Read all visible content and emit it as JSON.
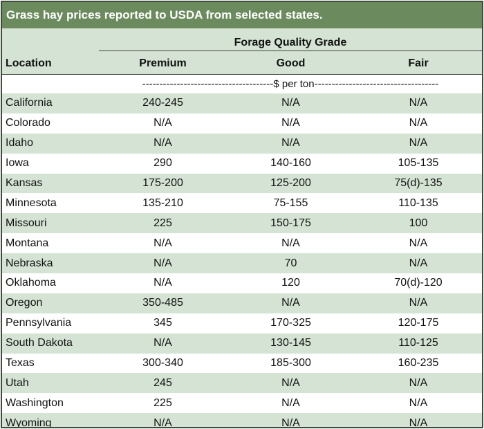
{
  "title": "Grass hay prices reported to USDA from selected states.",
  "header": {
    "group_label": "Forage Quality Grade",
    "location_label": "Location",
    "columns": [
      "Premium",
      "Good",
      "Fair"
    ],
    "units": "--------------------------------------$ per ton------------------------------------"
  },
  "rows": [
    {
      "location": "California",
      "premium": "240-245",
      "good": "N/A",
      "fair": "N/A"
    },
    {
      "location": "Colorado",
      "premium": "N/A",
      "good": "N/A",
      "fair": "N/A"
    },
    {
      "location": "Idaho",
      "premium": "N/A",
      "good": "N/A",
      "fair": "N/A"
    },
    {
      "location": "Iowa",
      "premium": "290",
      "good": "140-160",
      "fair": "105-135"
    },
    {
      "location": "Kansas",
      "premium": "175-200",
      "good": "125-200",
      "fair": "75(d)-135"
    },
    {
      "location": "Minnesota",
      "premium": "135-210",
      "good": "75-155",
      "fair": "110-135"
    },
    {
      "location": "Missouri",
      "premium": "225",
      "good": "150-175",
      "fair": "100"
    },
    {
      "location": "Montana",
      "premium": "N/A",
      "good": "N/A",
      "fair": "N/A"
    },
    {
      "location": "Nebraska",
      "premium": "N/A",
      "good": "70",
      "fair": "N/A"
    },
    {
      "location": "Oklahoma",
      "premium": "N/A",
      "good": "120",
      "fair": "70(d)-120"
    },
    {
      "location": "Oregon",
      "premium": "350-485",
      "good": "N/A",
      "fair": "N/A"
    },
    {
      "location": "Pennsylvania",
      "premium": "345",
      "good": "170-325",
      "fair": "120-175"
    },
    {
      "location": "South Dakota",
      "premium": "N/A",
      "good": "130-145",
      "fair": "110-125"
    },
    {
      "location": "Texas",
      "premium": "300-340",
      "good": "185-300",
      "fair": "160-235"
    },
    {
      "location": "Utah",
      "premium": "245",
      "good": "N/A",
      "fair": "N/A"
    },
    {
      "location": "Washington",
      "premium": "225",
      "good": "N/A",
      "fair": "N/A"
    },
    {
      "location": "Wyoming",
      "premium": "N/A",
      "good": "N/A",
      "fair": "N/A"
    }
  ],
  "colors": {
    "title_bar": "#6b8a5e",
    "band_shaded": "#d5e3d4",
    "band_plain": "#ffffff",
    "border": "#3f4a3c"
  }
}
